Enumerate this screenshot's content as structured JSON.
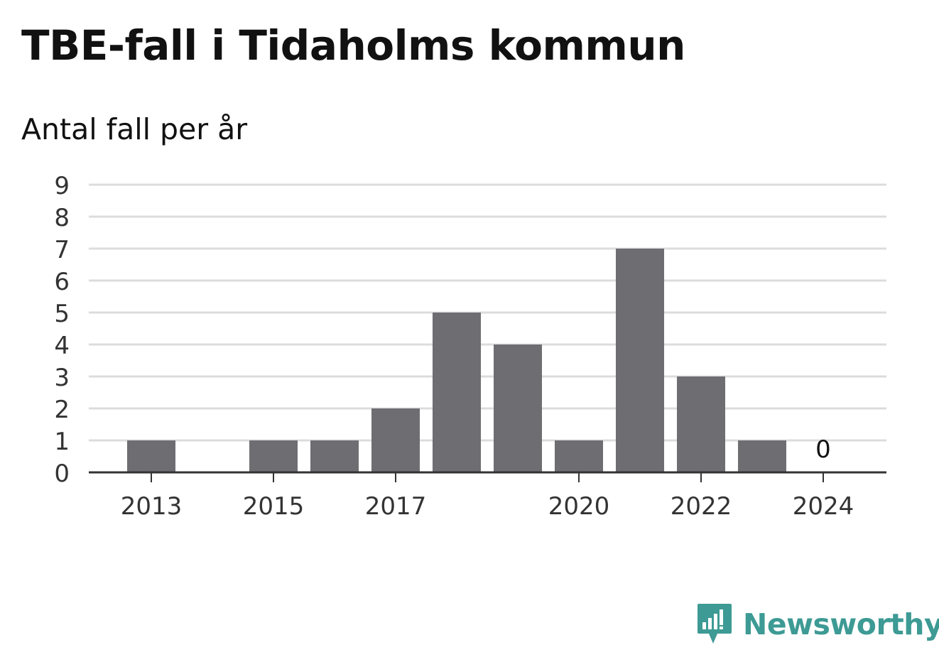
{
  "title": "TBE-fall i Tidaholms kommun",
  "subtitle": "Antal fall per år",
  "brand": {
    "name": "Newsworthy",
    "color": "#3d9a94",
    "icon": "bar-chart-bubble-icon"
  },
  "colors": {
    "bar": "#6e6d72",
    "grid": "#dcdcdc",
    "axis": "#333333",
    "text": "#333333"
  },
  "chart_data": {
    "type": "bar",
    "categories": [
      "2013",
      "2014",
      "2015",
      "2016",
      "2017",
      "2018",
      "2019",
      "2020",
      "2021",
      "2022",
      "2023",
      "2024"
    ],
    "values": [
      1,
      0,
      1,
      1,
      2,
      5,
      4,
      1,
      7,
      3,
      1,
      0
    ],
    "x_tick_labels": [
      "2013",
      "2015",
      "2017",
      "2020",
      "2022",
      "2024"
    ],
    "y_ticks": [
      0,
      1,
      2,
      3,
      4,
      5,
      6,
      7,
      8,
      9
    ],
    "ylim": [
      0,
      9
    ],
    "annotations": [
      {
        "category": "2024",
        "text": "0"
      }
    ],
    "grid": true,
    "legend": "none"
  }
}
